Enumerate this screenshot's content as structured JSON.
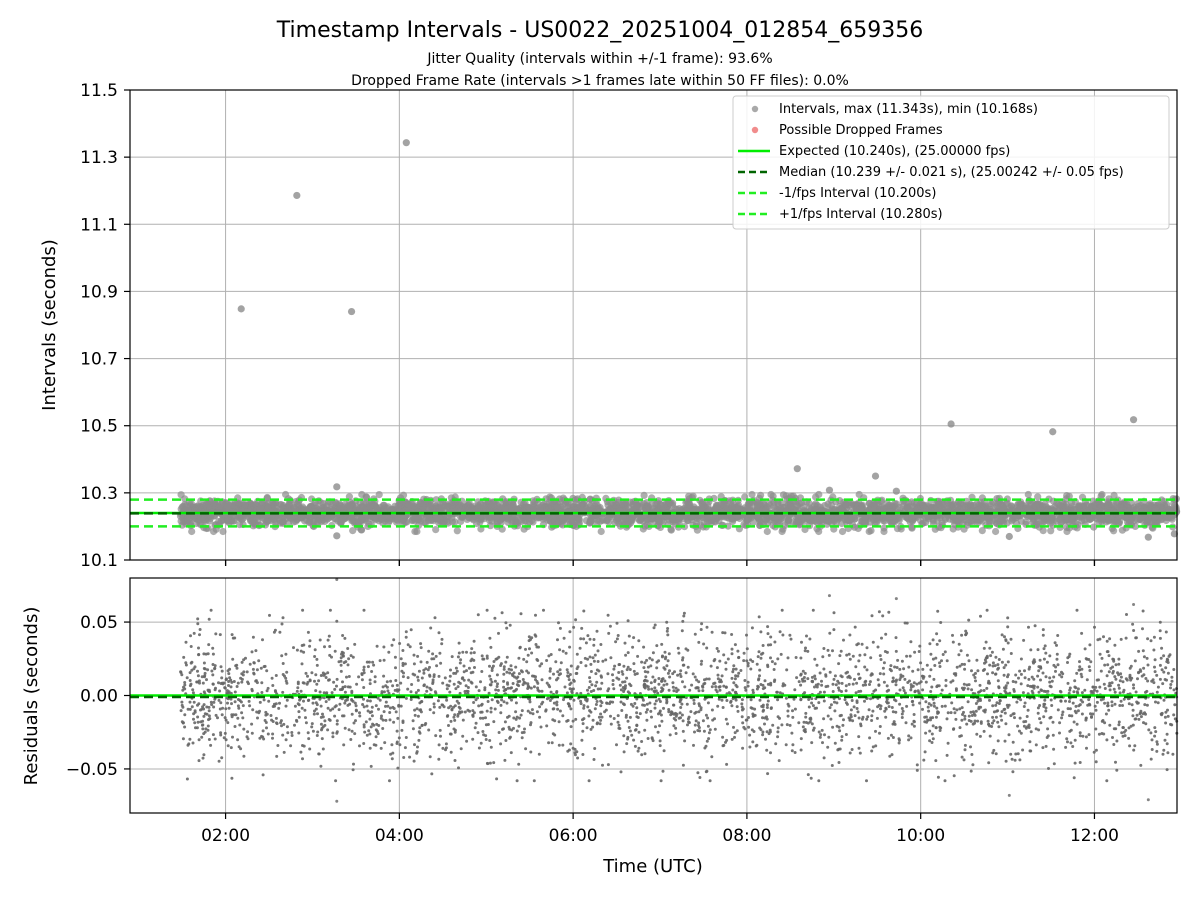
{
  "title": "Timestamp Intervals - US0022_20251004_012854_659356",
  "subtitle1": "Jitter Quality (intervals within +/-1 frame): 93.6%",
  "subtitle2": "Dropped Frame Rate (intervals >1 frames late within 50 FF files): 0.0%",
  "colors": {
    "interval_points": "#8c8c8c",
    "dropped_points": "#f08080",
    "expected": "#00ee00",
    "median": "#006400",
    "bound_lines": "#22ee22",
    "residual_points": "#666666",
    "grid": "#b0b0b0",
    "axis": "#000000"
  },
  "chart_data": [
    {
      "type": "scatter",
      "panel": "intervals",
      "xlabel": "",
      "ylabel": "Intervals (seconds)",
      "xlim_hours": [
        0.9,
        12.95
      ],
      "ylim": [
        10.1,
        11.5
      ],
      "xticks_hours": [
        2,
        4,
        6,
        8,
        10,
        12
      ],
      "xtick_labels": [
        "02:00",
        "04:00",
        "06:00",
        "08:00",
        "10:00",
        "12:00"
      ],
      "yticks": [
        10.1,
        10.3,
        10.5,
        10.7,
        10.9,
        11.1,
        11.3,
        11.5
      ],
      "ytick_labels": [
        "10.1",
        "10.3",
        "10.5",
        "10.7",
        "10.9",
        "11.1",
        "11.3",
        "11.5"
      ],
      "bulk_band": {
        "x_start_hours": 1.48,
        "x_end_hours": 12.95,
        "center": 10.24,
        "spread": 0.025,
        "min": 10.168,
        "approx_count": 3500
      },
      "outliers": [
        {
          "x_hours": 2.18,
          "y": 10.848
        },
        {
          "x_hours": 2.82,
          "y": 11.186
        },
        {
          "x_hours": 3.45,
          "y": 10.84
        },
        {
          "x_hours": 4.08,
          "y": 11.343
        },
        {
          "x_hours": 3.28,
          "y": 10.318
        },
        {
          "x_hours": 8.58,
          "y": 10.372
        },
        {
          "x_hours": 8.95,
          "y": 10.308
        },
        {
          "x_hours": 9.48,
          "y": 10.35
        },
        {
          "x_hours": 9.72,
          "y": 10.305
        },
        {
          "x_hours": 10.35,
          "y": 10.505
        },
        {
          "x_hours": 11.52,
          "y": 10.482
        },
        {
          "x_hours": 12.45,
          "y": 10.518
        },
        {
          "x_hours": 11.02,
          "y": 10.17
        },
        {
          "x_hours": 12.92,
          "y": 10.178
        },
        {
          "x_hours": 12.62,
          "y": 10.168
        },
        {
          "x_hours": 3.28,
          "y": 10.172
        }
      ],
      "reference_lines": [
        {
          "name": "expected",
          "value": 10.24,
          "style": "solid"
        },
        {
          "name": "median",
          "value": 10.239,
          "style": "dashed"
        },
        {
          "name": "minus_one_fps",
          "value": 10.2,
          "style": "dashed"
        },
        {
          "name": "plus_one_fps",
          "value": 10.28,
          "style": "dashed"
        }
      ],
      "legend": {
        "placement": "upper-right",
        "entries": [
          {
            "label": "Intervals, max (11.343s), min (10.168s)",
            "marker": "dot-gray"
          },
          {
            "label": "Possible Dropped Frames",
            "marker": "dot-red"
          },
          {
            "label": "Expected (10.240s), (25.00000 fps)",
            "marker": "line-solid-bright"
          },
          {
            "label": "Median (10.239 +/- 0.021 s), (25.00242 +/- 0.05 fps)",
            "marker": "line-dashed-dark"
          },
          {
            "label": "-1/fps Interval (10.200s)",
            "marker": "line-dashed-bright"
          },
          {
            "label": "+1/fps Interval (10.280s)",
            "marker": "line-dashed-bright"
          }
        ]
      }
    },
    {
      "type": "scatter",
      "panel": "residuals",
      "xlabel": "Time (UTC)",
      "ylabel": "Residuals (seconds)",
      "xlim_hours": [
        0.9,
        12.95
      ],
      "ylim": [
        -0.08,
        0.08
      ],
      "xticks_hours": [
        2,
        4,
        6,
        8,
        10,
        12
      ],
      "xtick_labels": [
        "02:00",
        "04:00",
        "06:00",
        "08:00",
        "10:00",
        "12:00"
      ],
      "yticks": [
        -0.05,
        0.0,
        0.05
      ],
      "ytick_labels": [
        "−0.05",
        "0.00",
        "0.05"
      ],
      "bulk_band": {
        "x_start_hours": 1.48,
        "x_end_hours": 12.95,
        "center": 0.0,
        "spread": 0.022,
        "approx_count": 3200
      },
      "outliers": [
        {
          "x_hours": 3.28,
          "y": 0.079
        },
        {
          "x_hours": 3.28,
          "y": -0.072
        },
        {
          "x_hours": 8.95,
          "y": 0.068
        },
        {
          "x_hours": 9.72,
          "y": 0.066
        },
        {
          "x_hours": 11.02,
          "y": -0.068
        },
        {
          "x_hours": 12.62,
          "y": -0.071
        },
        {
          "x_hours": 12.45,
          "y": 0.062
        }
      ],
      "reference_lines": [
        {
          "name": "zero",
          "value": 0.0,
          "style": "solid"
        },
        {
          "name": "median_residual",
          "value": -0.001,
          "style": "dashed"
        }
      ]
    }
  ]
}
